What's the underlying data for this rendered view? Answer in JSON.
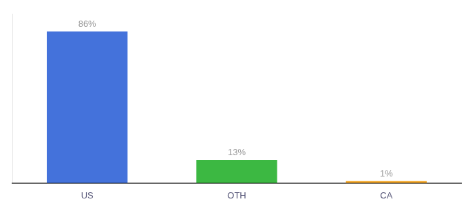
{
  "chart_data": {
    "type": "bar",
    "categories": [
      "US",
      "OTH",
      "CA"
    ],
    "values": [
      86,
      13,
      1
    ],
    "value_labels": [
      "86%",
      "13%",
      "1%"
    ],
    "data_labels": true,
    "colors": [
      "#4472db",
      "#3cb842",
      "#f5a623"
    ],
    "ylim": [
      0,
      96
    ],
    "grid": false,
    "tick_labels": "x"
  }
}
